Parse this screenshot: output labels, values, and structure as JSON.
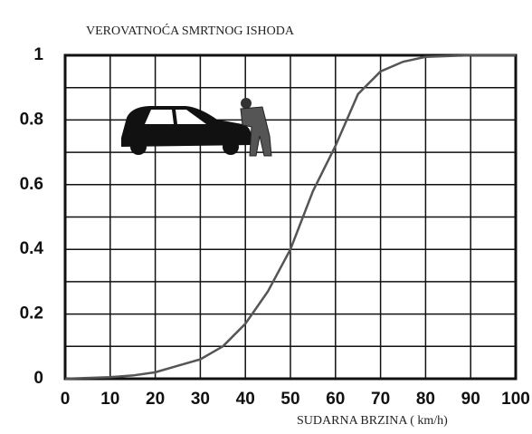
{
  "chart_data": {
    "type": "line",
    "title": "VEROVATNOĆA SMRTNOG ISHODA",
    "x_label": "SUDARNA BRZINA ( km/h)",
    "x": [
      0,
      10,
      15,
      20,
      25,
      30,
      35,
      40,
      45,
      50,
      55,
      60,
      65,
      70,
      75,
      80,
      90,
      100
    ],
    "series": [
      {
        "color": "#555555",
        "values": [
          0,
          0.005,
          0.01,
          0.02,
          0.04,
          0.06,
          0.1,
          0.17,
          0.27,
          0.4,
          0.58,
          0.72,
          0.88,
          0.95,
          0.98,
          0.995,
          1,
          1
        ]
      }
    ],
    "xlim": [
      0,
      100
    ],
    "xticks": [
      0,
      10,
      20,
      30,
      40,
      50,
      60,
      70,
      80,
      90,
      100
    ],
    "ylim": [
      0,
      1
    ],
    "yticks": [
      0,
      0.2,
      0.4,
      0.6,
      0.8,
      1
    ],
    "yminor_ticks": [
      0.1,
      0.3,
      0.5,
      0.7,
      0.9
    ],
    "grid": true
  }
}
